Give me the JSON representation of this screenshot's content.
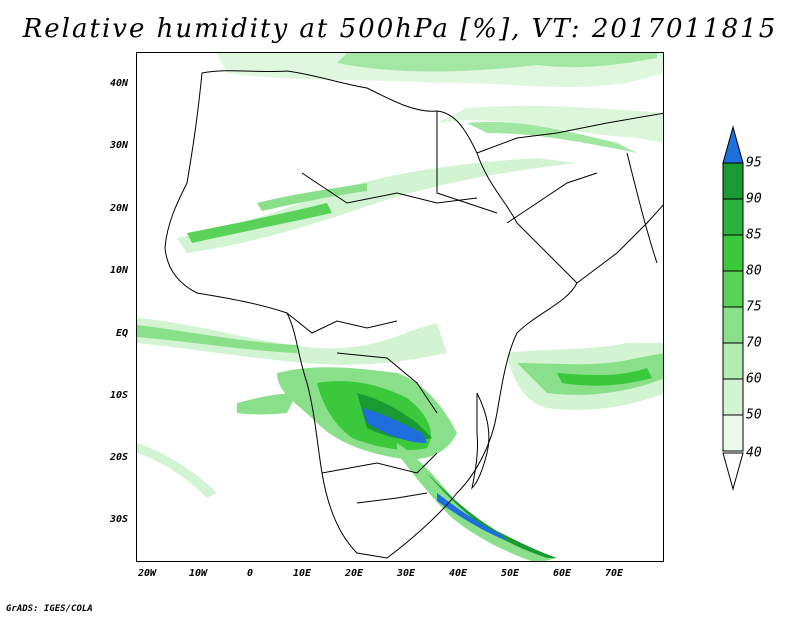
{
  "title": "Relative humidity at 500hPa [%], VT: 2017011815",
  "footer": "GrADS: IGES/COLA",
  "lat_labels": [
    "40N",
    "30N",
    "20N",
    "10N",
    "EQ",
    "10S",
    "20S",
    "30S"
  ],
  "lon_labels": [
    "20W",
    "10W",
    "0",
    "10E",
    "20E",
    "30E",
    "40E",
    "50E",
    "60E",
    "70E"
  ],
  "colorbar": {
    "levels": [
      "95",
      "90",
      "85",
      "80",
      "75",
      "70",
      "60",
      "50",
      "40"
    ],
    "colors": [
      "#1e6ede",
      "#1a9a32",
      "#28b43c",
      "#3cc83c",
      "#5ad25a",
      "#8ae08a",
      "#b4ecb4",
      "#d2f4d2",
      "#ebfbeb"
    ],
    "top_arrow_color": "#1e6ede",
    "bottom_arrow_color": "#ffffff"
  },
  "map": {
    "lon_range": [
      -22,
      80
    ],
    "lat_range": [
      -37,
      45
    ],
    "land_outline_color": "#000000",
    "humidity_colors": {
      "low": "#d2f4d2",
      "mid": "#8ae08a",
      "high": "#3cc83c",
      "very_high": "#1a9a32",
      "max": "#1e6ede"
    }
  }
}
